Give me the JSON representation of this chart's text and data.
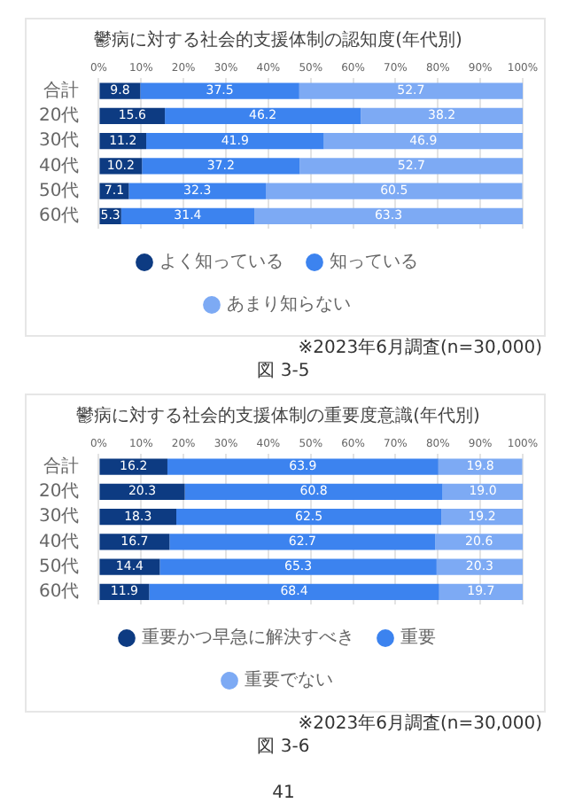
{
  "chart_data": [
    {
      "type": "bar",
      "title": "鬱病に対する社会的支援体制の認知度(年代別)",
      "orientation": "horizontal",
      "stacked": true,
      "categories": [
        "合計",
        "20代",
        "30代",
        "40代",
        "50代",
        "60代"
      ],
      "series": [
        {
          "name": "よく知っている",
          "color": "#0d3b82",
          "values": [
            9.8,
            15.6,
            11.2,
            10.2,
            7.1,
            5.3
          ]
        },
        {
          "name": "知っている",
          "color": "#3c83ef",
          "values": [
            37.5,
            46.2,
            41.9,
            37.2,
            32.3,
            31.4
          ]
        },
        {
          "name": "あまり知らない",
          "color": "#7daaf4",
          "values": [
            52.7,
            38.2,
            46.9,
            52.7,
            60.5,
            63.3
          ]
        }
      ],
      "xlim": [
        0,
        100
      ],
      "xticks": [
        {
          "value": 0,
          "label": "0%"
        },
        {
          "value": 10,
          "label": "10%"
        },
        {
          "value": 20,
          "label": "20%"
        },
        {
          "value": 30,
          "label": "30%"
        },
        {
          "value": 40,
          "label": "40%"
        },
        {
          "value": 50,
          "label": "50%"
        },
        {
          "value": 60,
          "label": "60%"
        },
        {
          "value": 70,
          "label": "70%"
        },
        {
          "value": 80,
          "label": "80%"
        },
        {
          "value": 90,
          "label": "90%"
        },
        {
          "value": 100,
          "label": "100%"
        }
      ],
      "grid": "x",
      "legend": "bottom",
      "data_labels": true,
      "marker": "circle",
      "annotations": [
        "※2023年6月調査(n=30,000)",
        "図 3-5"
      ]
    },
    {
      "type": "bar",
      "title": "鬱病に対する社会的支援体制の重要度意識(年代別)",
      "orientation": "horizontal",
      "stacked": true,
      "categories": [
        "合計",
        "20代",
        "30代",
        "40代",
        "50代",
        "60代"
      ],
      "series": [
        {
          "name": "重要かつ早急に解決すべき",
          "color": "#0d3b82",
          "values": [
            16.2,
            20.3,
            18.3,
            16.7,
            14.4,
            11.9
          ]
        },
        {
          "name": "重要",
          "color": "#3c83ef",
          "values": [
            63.9,
            60.8,
            62.5,
            62.7,
            65.3,
            68.4
          ]
        },
        {
          "name": "重要でない",
          "color": "#7daaf4",
          "values": [
            19.8,
            19.0,
            19.2,
            20.6,
            20.3,
            19.7
          ],
          "value_labels": [
            "19.8",
            "19.0",
            "19.2",
            "20.6",
            "20.3",
            "19.7"
          ]
        }
      ],
      "xlim": [
        0,
        100
      ],
      "xticks": [
        {
          "value": 0,
          "label": "0%"
        },
        {
          "value": 10,
          "label": "10%"
        },
        {
          "value": 20,
          "label": "20%"
        },
        {
          "value": 30,
          "label": "30%"
        },
        {
          "value": 40,
          "label": "40%"
        },
        {
          "value": 50,
          "label": "50%"
        },
        {
          "value": 60,
          "label": "60%"
        },
        {
          "value": 70,
          "label": "70%"
        },
        {
          "value": 80,
          "label": "80%"
        },
        {
          "value": 90,
          "label": "90%"
        },
        {
          "value": 100,
          "label": "100%"
        }
      ],
      "grid": "x",
      "legend": "bottom",
      "data_labels": true,
      "marker": "circle",
      "annotations": [
        "※2023年6月調査(n=30,000)",
        "図 3-6",
        "41"
      ]
    }
  ]
}
